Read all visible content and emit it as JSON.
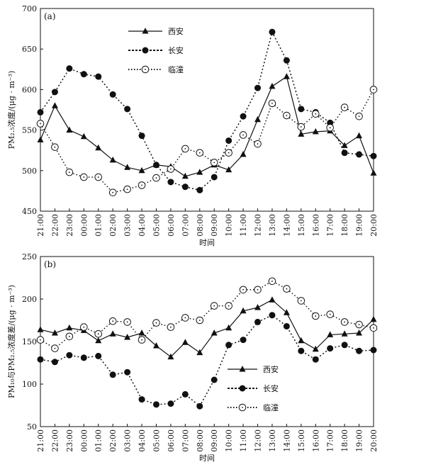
{
  "chart_data": [
    {
      "type": "line",
      "panel_label": "(a)",
      "xlabel": "时间",
      "ylabel": "PM₂.₅浓度/(μg · m⁻³)",
      "ylim": [
        450,
        700
      ],
      "yticks": [
        450,
        500,
        550,
        600,
        650,
        700
      ],
      "categories": [
        "21:00",
        "22:00",
        "23:00",
        "00:00",
        "01:00",
        "02:00",
        "03:00",
        "04:00",
        "05:00",
        "06:00",
        "07:00",
        "08:00",
        "09:00",
        "10:00",
        "11:00",
        "12:00",
        "13:00",
        "14:00",
        "15:00",
        "16:00",
        "17:00",
        "18:00",
        "19:00",
        "20:00"
      ],
      "legend_position": "top-center",
      "series": [
        {
          "name": "西安",
          "style": "solid-triangle",
          "values": [
            538,
            580,
            550,
            542,
            528,
            513,
            504,
            500,
            507,
            505,
            493,
            498,
            507,
            501,
            520,
            563,
            604,
            616,
            545,
            548,
            549,
            531,
            543,
            497
          ]
        },
        {
          "name": "长安",
          "style": "dotted-filled-circle",
          "values": [
            572,
            597,
            626,
            619,
            616,
            594,
            576,
            543,
            507,
            486,
            480,
            476,
            492,
            537,
            567,
            602,
            671,
            636,
            576,
            572,
            559,
            522,
            520,
            518
          ]
        },
        {
          "name": "临潼",
          "style": "dotted-open-circle",
          "values": [
            558,
            529,
            498,
            492,
            492,
            473,
            477,
            482,
            491,
            502,
            527,
            522,
            510,
            522,
            544,
            533,
            583,
            568,
            554,
            570,
            553,
            578,
            567,
            600
          ]
        }
      ]
    },
    {
      "type": "line",
      "panel_label": "(b)",
      "xlabel": "时间",
      "ylabel": "PM₁₀与PM₂.₅浓度差/(μg · m⁻³)",
      "ylim": [
        50,
        250
      ],
      "yticks": [
        50,
        100,
        150,
        200,
        250
      ],
      "categories": [
        "21:00",
        "22:00",
        "23:00",
        "00:00",
        "01:00",
        "02:00",
        "03:00",
        "04:00",
        "05:00",
        "06:00",
        "07:00",
        "08:00",
        "09:00",
        "10:00",
        "11:00",
        "12:00",
        "13:00",
        "14:00",
        "15:00",
        "16:00",
        "17:00",
        "18:00",
        "19:00",
        "20:00"
      ],
      "legend_position": "bottom-right",
      "series": [
        {
          "name": "西安",
          "style": "solid-triangle",
          "values": [
            164,
            160,
            166,
            163,
            151,
            159,
            155,
            160,
            145,
            132,
            149,
            137,
            160,
            166,
            186,
            190,
            199,
            184,
            151,
            141,
            158,
            159,
            160,
            176
          ]
        },
        {
          "name": "长安",
          "style": "dotted-filled-circle",
          "values": [
            129,
            126,
            134,
            131,
            133,
            111,
            114,
            82,
            76,
            77,
            88,
            74,
            105,
            146,
            152,
            173,
            181,
            168,
            139,
            129,
            142,
            146,
            139,
            140
          ]
        },
        {
          "name": "临潼",
          "style": "dotted-open-circle",
          "values": [
            152,
            142,
            156,
            167,
            159,
            174,
            173,
            152,
            172,
            167,
            178,
            175,
            192,
            192,
            211,
            211,
            221,
            212,
            198,
            180,
            182,
            173,
            170,
            166
          ]
        }
      ]
    }
  ]
}
